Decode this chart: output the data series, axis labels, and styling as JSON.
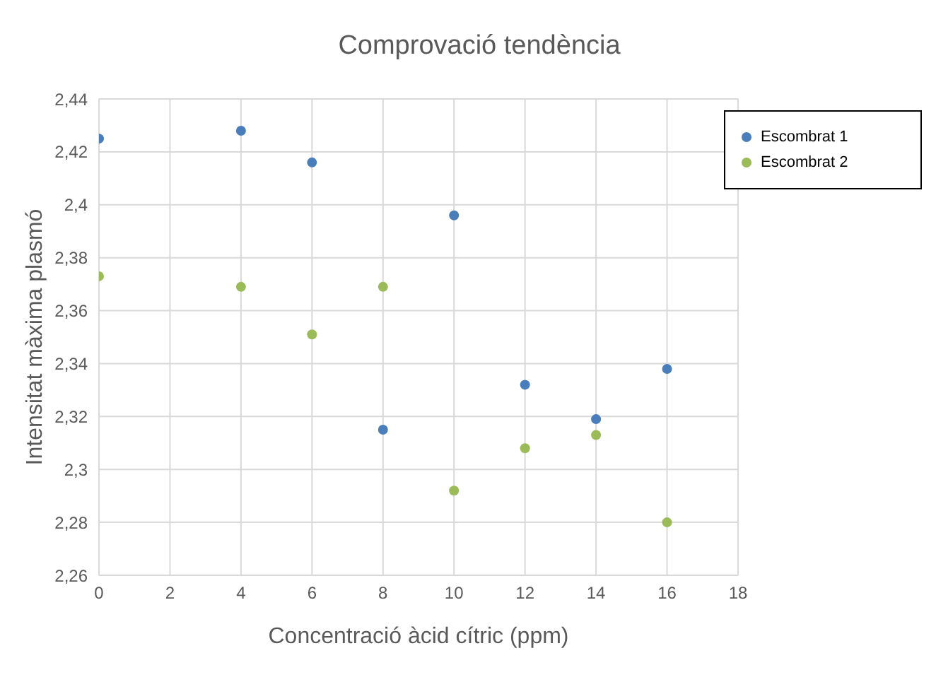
{
  "chart_data": {
    "type": "scatter",
    "title": "Comprovació tendència",
    "xlabel": "Concentració àcid cítric (ppm)",
    "ylabel": "Intensitat màxima plasmó",
    "x": [
      0,
      4,
      6,
      8,
      10,
      12,
      14,
      16
    ],
    "series": [
      {
        "name": "Escombrat 1",
        "color": "#4a7ebb",
        "values": [
          2.425,
          2.428,
          2.416,
          2.315,
          2.396,
          2.332,
          2.319,
          2.338
        ]
      },
      {
        "name": "Escombrat 2",
        "color": "#9bbb59",
        "values": [
          2.373,
          2.369,
          2.351,
          2.369,
          2.292,
          2.308,
          2.313,
          2.28
        ]
      }
    ],
    "xlim": [
      0,
      18
    ],
    "xticks": [
      0,
      2,
      4,
      6,
      8,
      10,
      12,
      14,
      16,
      18
    ],
    "ylim": [
      2.26,
      2.44
    ],
    "yticks": [
      {
        "value": 2.26,
        "label": "2,26"
      },
      {
        "value": 2.28,
        "label": "2,28"
      },
      {
        "value": 2.3,
        "label": "2,3"
      },
      {
        "value": 2.32,
        "label": "2,32"
      },
      {
        "value": 2.34,
        "label": "2,34"
      },
      {
        "value": 2.36,
        "label": "2,36"
      },
      {
        "value": 2.38,
        "label": "2,38"
      },
      {
        "value": 2.4,
        "label": "2,4"
      },
      {
        "value": 2.42,
        "label": "2,42"
      },
      {
        "value": 2.44,
        "label": "2,44"
      }
    ],
    "grid": true,
    "legend": "top right",
    "marker": "circle"
  }
}
